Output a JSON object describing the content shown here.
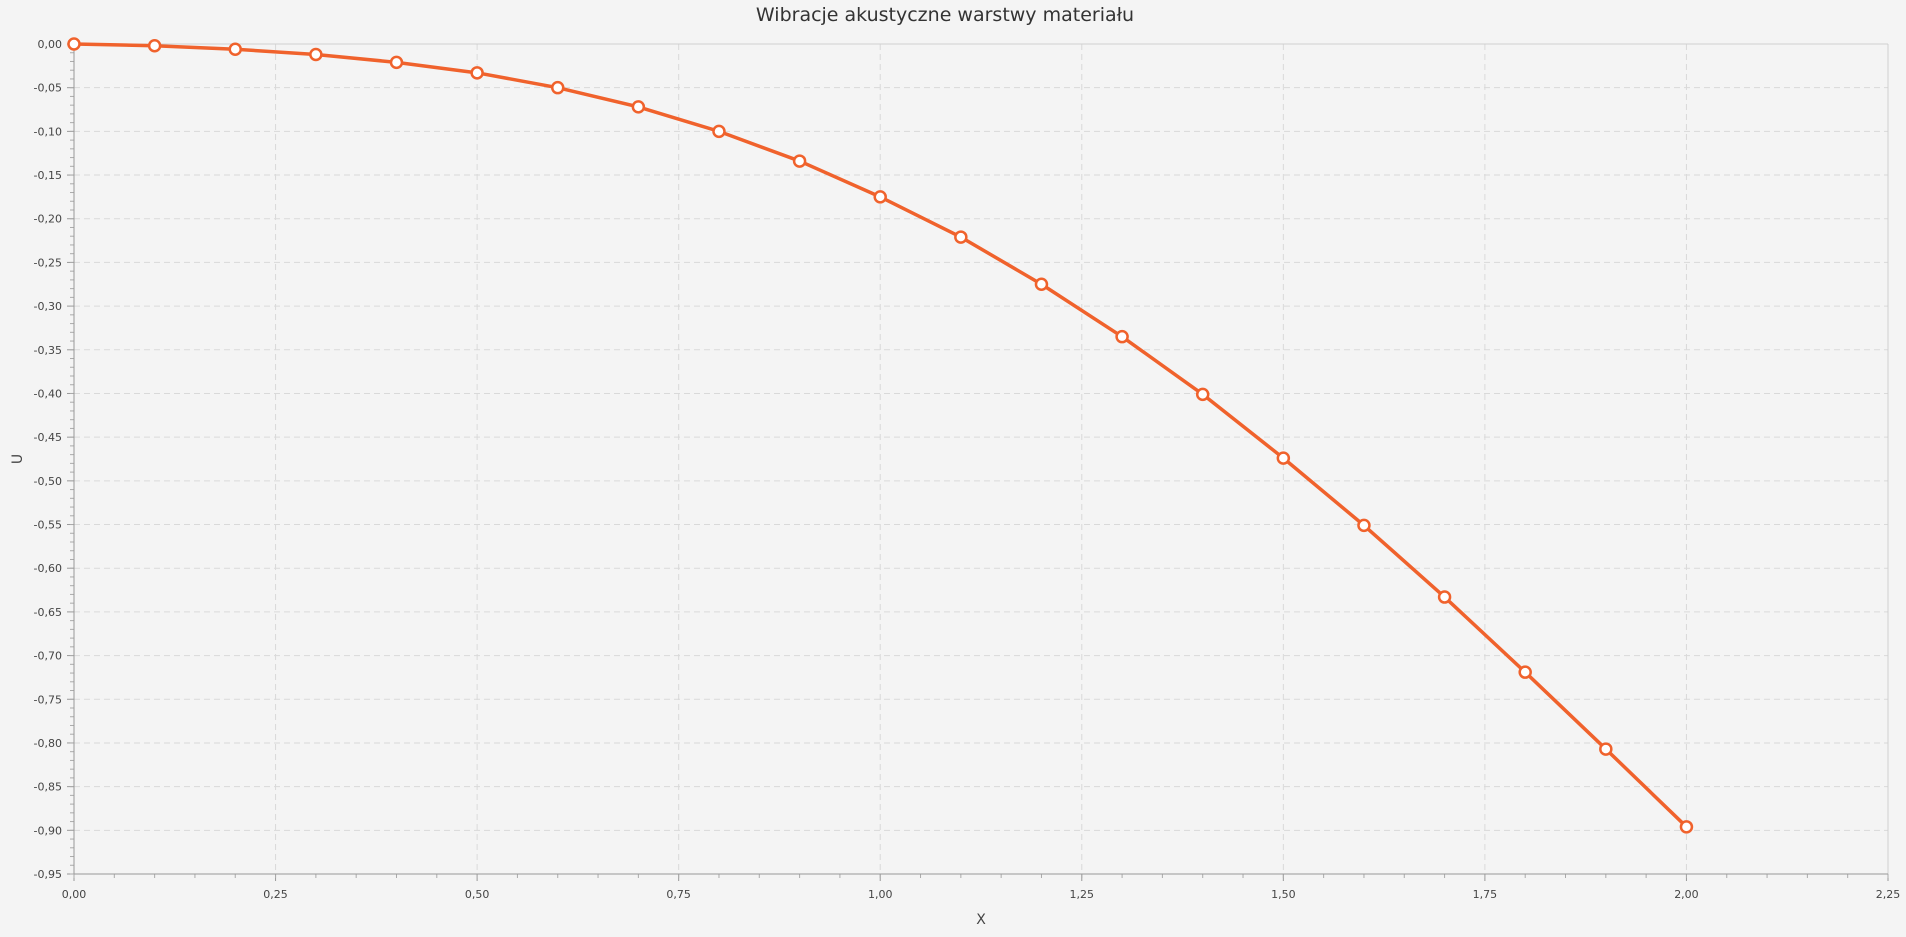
{
  "chart_data": {
    "type": "line",
    "title": "Wibracje akustyczne warstwy materiału",
    "xlabel": "X",
    "ylabel": "U",
    "xlim": [
      0,
      2.25
    ],
    "ylim": [
      -0.95,
      0
    ],
    "x_ticks": [
      "0,00",
      "0,25",
      "0,50",
      "0,75",
      "1,00",
      "1,25",
      "1,50",
      "1,75",
      "2,00",
      "2,25"
    ],
    "y_ticks": [
      "0,00",
      "-0,05",
      "-0,10",
      "-0,15",
      "-0,20",
      "-0,25",
      "-0,30",
      "-0,35",
      "-0,40",
      "-0,45",
      "-0,50",
      "-0,55",
      "-0,60",
      "-0,65",
      "-0,70",
      "-0,75",
      "-0,80",
      "-0,85",
      "-0,90",
      "-0,95"
    ],
    "grid": true,
    "series": [
      {
        "color": "#f0622c",
        "x": [
          0.0,
          0.1,
          0.2,
          0.3,
          0.4,
          0.5,
          0.6,
          0.7,
          0.8,
          0.9,
          1.0,
          1.1,
          1.2,
          1.3,
          1.4,
          1.5,
          1.6,
          1.7,
          1.8,
          1.9,
          2.0
        ],
        "y": [
          0.0,
          -0.002,
          -0.006,
          -0.012,
          -0.021,
          -0.033,
          -0.05,
          -0.072,
          -0.1,
          -0.134,
          -0.175,
          -0.221,
          -0.275,
          -0.335,
          -0.401,
          -0.474,
          -0.551,
          -0.633,
          -0.719,
          -0.807,
          -0.896
        ]
      }
    ]
  }
}
